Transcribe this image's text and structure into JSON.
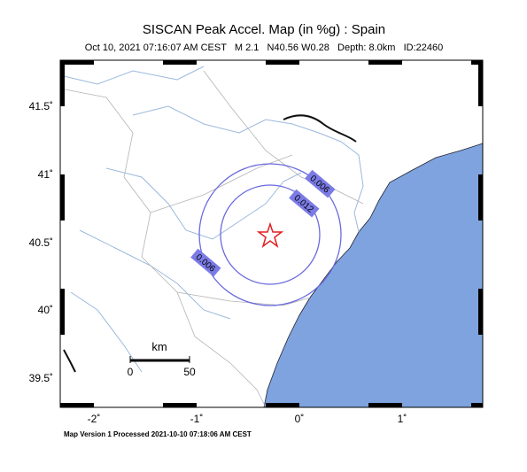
{
  "header": {
    "title": "SISCAN Peak Accel. Map (in %g) : Spain",
    "subtitle": "Oct 10, 2021 07:16:07 AM CEST   M 2.1   N40.56 W0.28   Depth: 8.0km   ID:22460"
  },
  "axes": {
    "lat_labels": [
      "41.5˚",
      "41˚",
      "40.5˚",
      "40˚",
      "39.5˚"
    ],
    "lon_labels": [
      "-2˚",
      "-1˚",
      "0˚",
      "1˚"
    ]
  },
  "contours": {
    "labels": [
      "0.006",
      "0.012",
      "0.006"
    ]
  },
  "scale_bar": {
    "unit": "km",
    "start": "0",
    "end": "50"
  },
  "footer": "Map Version 1 Processed 2021-10-10 07:18:06 AM CEST"
}
